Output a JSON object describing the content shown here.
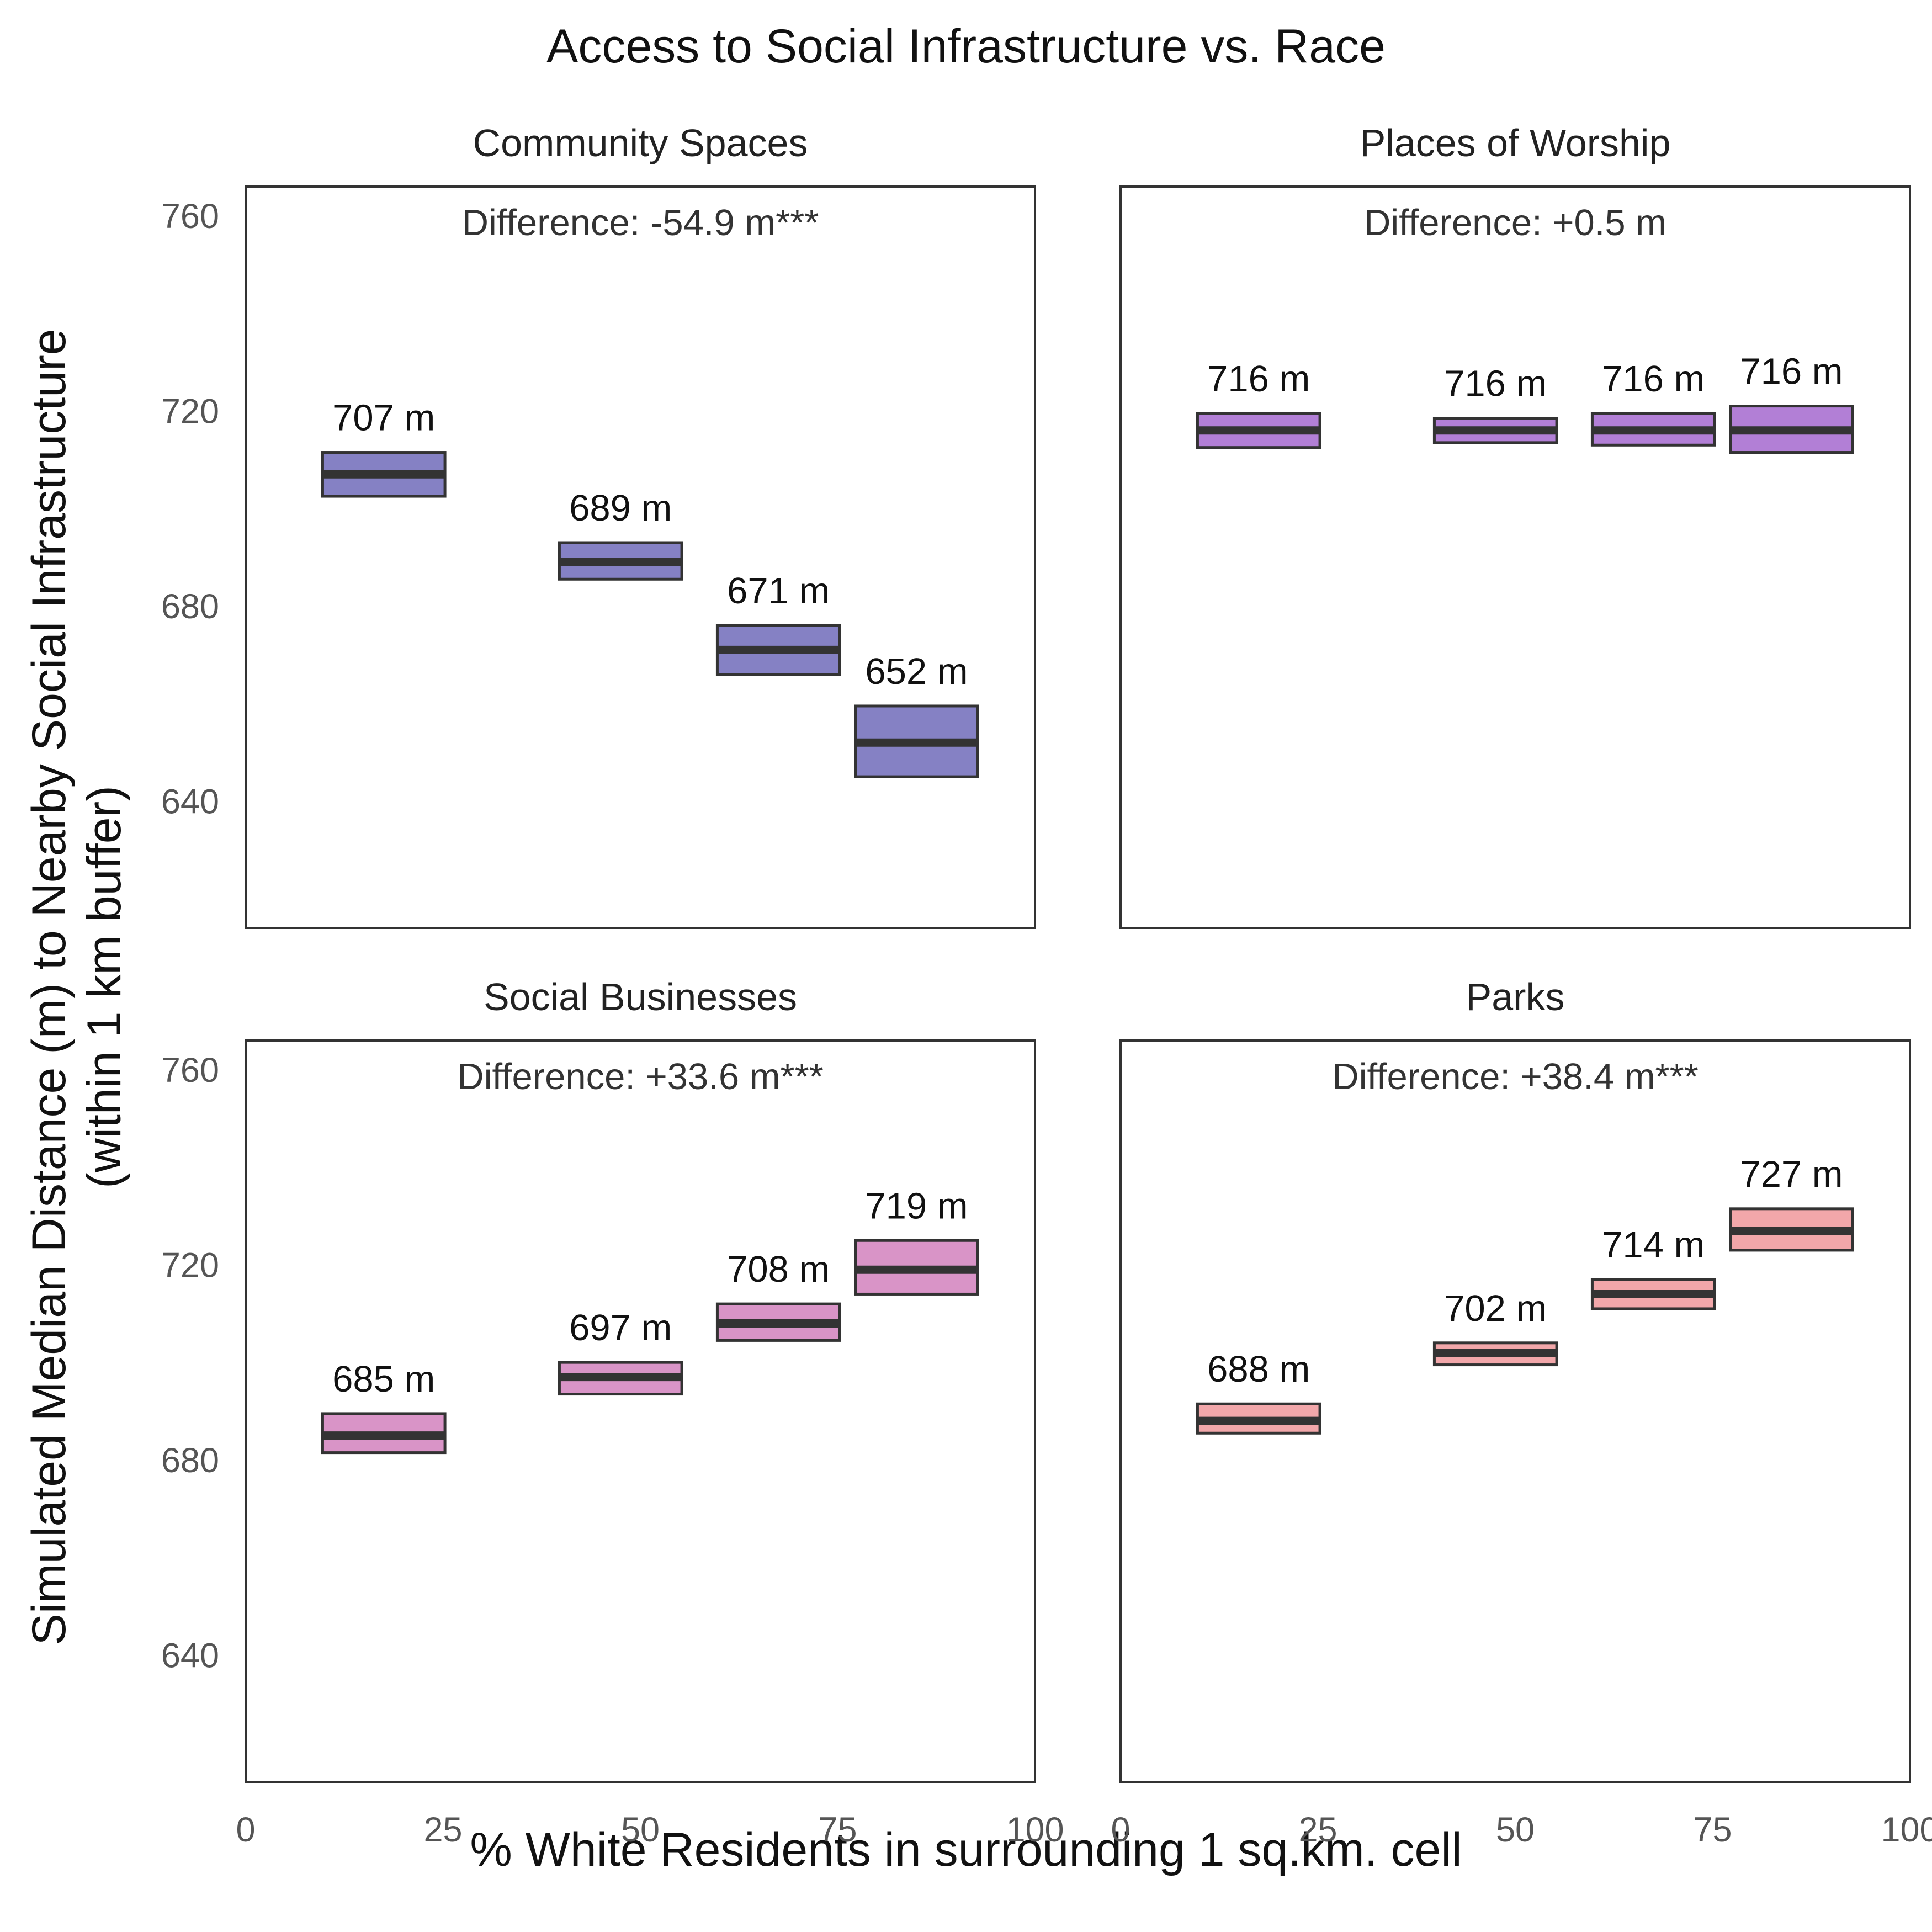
{
  "chart_data": {
    "type": "crossbar",
    "title": "Access to Social Infrastructure vs. Race",
    "xlabel": "% White Residents in surrounding 1 sq.km. cell",
    "ylabel_line1": "Simulated Median Distance (m) to Nearby Social Infrastructure",
    "ylabel_line2": "(within 1 km buffer)",
    "xlim": [
      0,
      100
    ],
    "ylim": [
      614,
      766
    ],
    "x_ticks": [
      0,
      25,
      50,
      75,
      100
    ],
    "y_ticks": [
      640,
      680,
      720,
      760
    ],
    "grid": false,
    "panels": [
      {
        "title": "Community Spaces",
        "annotation": "Difference: -54.9 m***",
        "color": "#8581c4",
        "bars": [
          {
            "x": 17.5,
            "median": 707,
            "low": 702.5,
            "high": 711.5,
            "label": "707 m"
          },
          {
            "x": 47.5,
            "median": 689,
            "low": 685.5,
            "high": 693,
            "label": "689 m"
          },
          {
            "x": 67.5,
            "median": 671,
            "low": 666,
            "high": 676,
            "label": "671 m"
          },
          {
            "x": 85,
            "median": 652,
            "low": 645,
            "high": 659.5,
            "label": "652 m"
          }
        ]
      },
      {
        "title": "Places of Worship",
        "annotation": "Difference: +0.5 m",
        "color": "#b27fd6",
        "bars": [
          {
            "x": 17.5,
            "median": 716,
            "low": 712.5,
            "high": 719.5,
            "label": "716 m"
          },
          {
            "x": 47.5,
            "median": 716,
            "low": 713.5,
            "high": 718.5,
            "label": "716 m"
          },
          {
            "x": 67.5,
            "median": 716,
            "low": 713,
            "high": 719.5,
            "label": "716 m"
          },
          {
            "x": 85,
            "median": 716,
            "low": 711.5,
            "high": 721,
            "label": "716 m"
          }
        ]
      },
      {
        "title": "Social Businesses",
        "annotation": "Difference: +33.6 m***",
        "color": "#d994c7",
        "bars": [
          {
            "x": 17.5,
            "median": 685,
            "low": 681.5,
            "high": 689.5,
            "label": "685 m"
          },
          {
            "x": 47.5,
            "median": 697,
            "low": 693.5,
            "high": 700,
            "label": "697 m"
          },
          {
            "x": 67.5,
            "median": 708,
            "low": 704.5,
            "high": 712,
            "label": "708 m"
          },
          {
            "x": 85,
            "median": 719,
            "low": 714,
            "high": 725,
            "label": "719 m"
          }
        ]
      },
      {
        "title": "Parks",
        "annotation": "Difference: +38.4 m***",
        "color": "#f2a7aa",
        "bars": [
          {
            "x": 17.5,
            "median": 688,
            "low": 685.5,
            "high": 691.5,
            "label": "688 m"
          },
          {
            "x": 47.5,
            "median": 702,
            "low": 699.5,
            "high": 704,
            "label": "702 m"
          },
          {
            "x": 67.5,
            "median": 714,
            "low": 711,
            "high": 717,
            "label": "714 m"
          },
          {
            "x": 85,
            "median": 727,
            "low": 723,
            "high": 731.5,
            "label": "727 m"
          }
        ]
      }
    ]
  }
}
